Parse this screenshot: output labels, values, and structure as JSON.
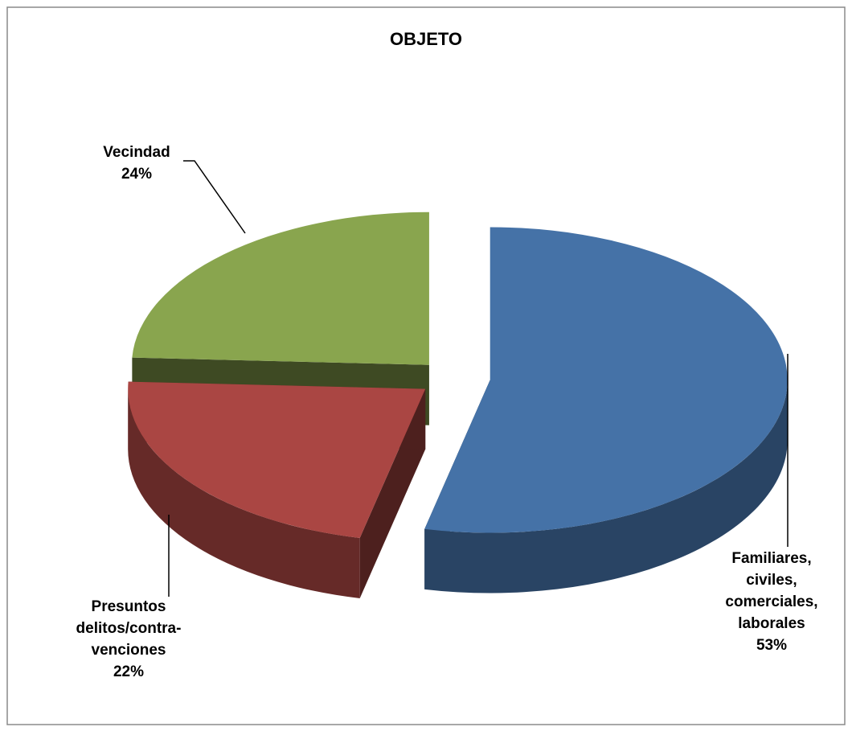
{
  "chart_data": {
    "type": "pie3d",
    "title": "OBJETO",
    "categories": [
      [
        "Familiares,",
        "civiles,",
        "comerciales,",
        "laborales"
      ],
      [
        "Presuntos",
        "delitos/contra-",
        "venciones"
      ],
      [
        "Vecindad"
      ]
    ],
    "values": [
      53,
      22,
      24
    ],
    "value_labels": [
      "53%",
      "22%",
      "24%"
    ],
    "colors": [
      "#4572a7",
      "#aa4643",
      "#89a54e"
    ]
  }
}
